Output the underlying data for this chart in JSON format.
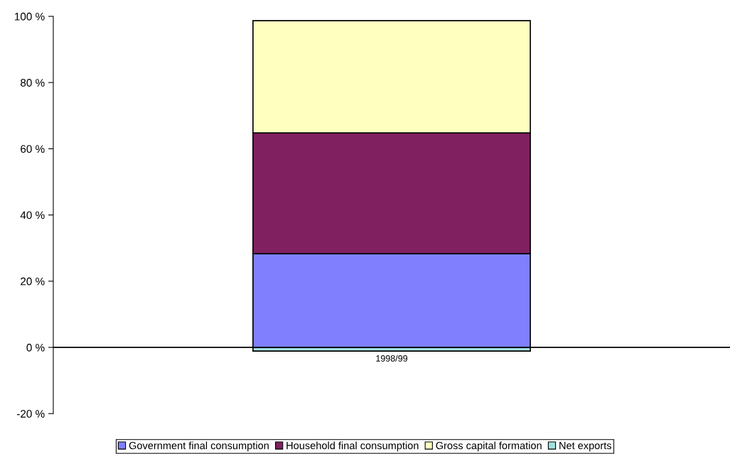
{
  "chart_data": {
    "type": "bar",
    "stacked": true,
    "categories": [
      "1998/99"
    ],
    "series": [
      {
        "name": "Government final consumption",
        "color": "#8080ff",
        "values": [
          28.3
        ]
      },
      {
        "name": "Household final consumption",
        "color": "#802060",
        "values": [
          36.5
        ]
      },
      {
        "name": "Gross capital formation",
        "color": "#ffffc0",
        "values": [
          33.9
        ]
      },
      {
        "name": "Net exports",
        "color": "#a0e0e0",
        "values": [
          -1.1
        ]
      }
    ],
    "ylim": [
      -20,
      100
    ],
    "yticks": [
      {
        "value": -20,
        "label": "-20 %"
      },
      {
        "value": 0,
        "label": "0 %"
      },
      {
        "value": 20,
        "label": "20 %"
      },
      {
        "value": 40,
        "label": "40 %"
      },
      {
        "value": 60,
        "label": "60 %"
      },
      {
        "value": 80,
        "label": "80 %"
      },
      {
        "value": 100,
        "label": "100 %"
      }
    ],
    "legend": "bottom"
  }
}
